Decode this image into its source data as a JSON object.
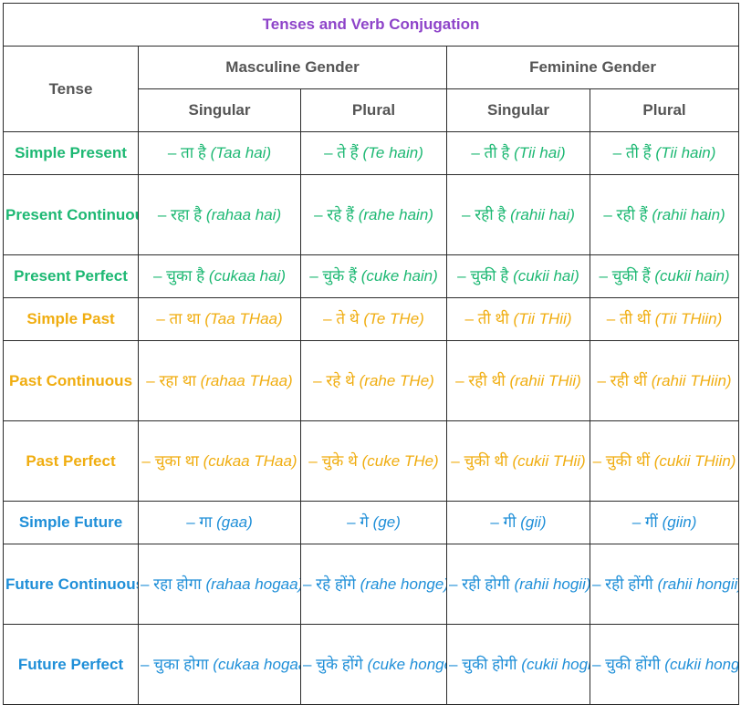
{
  "table": {
    "title": "Tenses and Verb Conjugation",
    "tense_header": "Tense",
    "masculine_header": "Masculine Gender",
    "feminine_header": "Feminine Gender",
    "sub_headers": [
      "Singular",
      "Plural",
      "Singular",
      "Plural"
    ],
    "colors": {
      "title": "#8e44c9",
      "header": "#555555",
      "present": "#1db873",
      "past": "#f0ad10",
      "future": "#1f8fd8"
    },
    "rows": [
      {
        "tense": "Simple Present",
        "cells": [
          {
            "hindi": "– ता है",
            "translit": "(Taa hai)"
          },
          {
            "hindi": "– ते हैं",
            "translit": "(Te hain)"
          },
          {
            "hindi": "– ती है",
            "translit": "(Tii hai)"
          },
          {
            "hindi": "– ती हैं",
            "translit": "(Tii hain)"
          }
        ]
      },
      {
        "tense": "Present Continuous",
        "cells": [
          {
            "hindi": "– रहा है",
            "translit": "(rahaa hai)"
          },
          {
            "hindi": "– रहे हैं",
            "translit": "(rahe hain)"
          },
          {
            "hindi": "– रही है",
            "translit": "(rahii hai)"
          },
          {
            "hindi": "– रही हैं",
            "translit": "(rahii hain)"
          }
        ]
      },
      {
        "tense": "Present Perfect",
        "cells": [
          {
            "hindi": "– चुका है",
            "translit": "(cukaa hai)"
          },
          {
            "hindi": "– चुके हैं",
            "translit": "(cuke hain)"
          },
          {
            "hindi": "– चुकी है",
            "translit": "(cukii hai)"
          },
          {
            "hindi": "– चुकी हैं",
            "translit": "(cukii hain)"
          }
        ]
      },
      {
        "tense": "Simple Past",
        "cells": [
          {
            "hindi": "– ता था",
            "translit": "(Taa THaa)"
          },
          {
            "hindi": "– ते थे",
            "translit": "(Te THe)"
          },
          {
            "hindi": "– ती थी",
            "translit": "(Tii THii)"
          },
          {
            "hindi": "– ती थीं",
            "translit": "(Tii THiin)"
          }
        ]
      },
      {
        "tense": "Past Continuous",
        "cells": [
          {
            "hindi": "– रहा था",
            "translit": "(rahaa THaa)"
          },
          {
            "hindi": "– रहे थे",
            "translit": "(rahe THe)"
          },
          {
            "hindi": "– रही थी",
            "translit": "(rahii THii)"
          },
          {
            "hindi": "– रही थीं",
            "translit": "(rahii THiin)"
          }
        ]
      },
      {
        "tense": "Past Perfect",
        "cells": [
          {
            "hindi": "– चुका था",
            "translit": "(cukaa THaa)"
          },
          {
            "hindi": "– चुके थे",
            "translit": "(cuke THe)"
          },
          {
            "hindi": "– चुकी थी",
            "translit": "(cukii THii)"
          },
          {
            "hindi": "– चुकी थीं",
            "translit": "(cukii THiin)"
          }
        ]
      },
      {
        "tense": "Simple Future",
        "cells": [
          {
            "hindi": "– गा",
            "translit": "(gaa)"
          },
          {
            "hindi": "– गे",
            "translit": "(ge)"
          },
          {
            "hindi": "– गी",
            "translit": "(gii)"
          },
          {
            "hindi": "– गीं",
            "translit": "(giin)"
          }
        ]
      },
      {
        "tense": "Future Continuous",
        "cells": [
          {
            "hindi": "– रहा होगा",
            "translit": "(rahaa hogaa)"
          },
          {
            "hindi": "– रहे होंगे",
            "translit": "(rahe honge)"
          },
          {
            "hindi": "– रही होगी",
            "translit": "(rahii hogii)"
          },
          {
            "hindi": "– रही होंगी",
            "translit": "(rahii hongii)"
          }
        ]
      },
      {
        "tense": "Future Perfect",
        "cells": [
          {
            "hindi": "– चुका होगा",
            "translit": "(cukaa hogaa)"
          },
          {
            "hindi": "– चुके होंगे",
            "translit": "(cuke honge)"
          },
          {
            "hindi": "– चुकी होगी",
            "translit": "(cukii hogii)"
          },
          {
            "hindi": "– चुकी होंगी",
            "translit": "(cukii hongii)"
          }
        ]
      }
    ]
  }
}
